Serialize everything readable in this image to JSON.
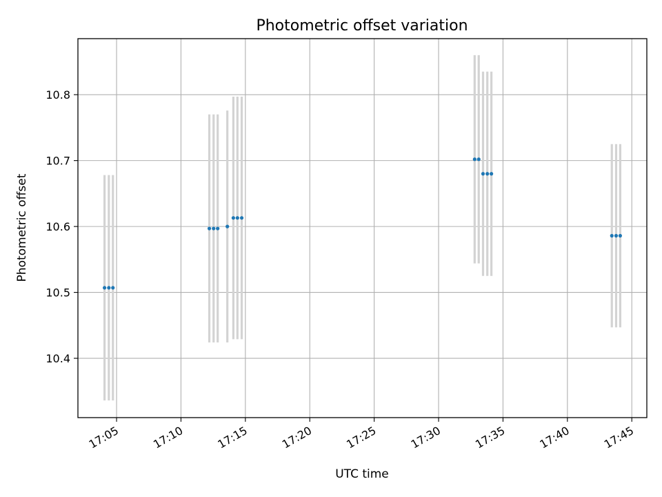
{
  "chart_data": {
    "type": "scatter",
    "title": "Photometric offset variation",
    "xlabel": "UTC time",
    "ylabel": "Photometric offset",
    "x_ticks": [
      "17:05",
      "17:10",
      "17:15",
      "17:20",
      "17:25",
      "17:30",
      "17:35",
      "17:40",
      "17:45"
    ],
    "y_ticks": [
      "10.4",
      "10.5",
      "10.6",
      "10.7",
      "10.8"
    ],
    "xlim": [
      "17:02:00",
      "17:46:10"
    ],
    "ylim": [
      10.31,
      10.885
    ],
    "grid": true,
    "marker_color": "#1f77b4",
    "errorbar_color": "#d3d3d3",
    "points": [
      {
        "time": "17:04:04",
        "y": 10.507,
        "err": 0.171
      },
      {
        "time": "17:04:24",
        "y": 10.507,
        "err": 0.171
      },
      {
        "time": "17:04:43",
        "y": 10.507,
        "err": 0.171
      },
      {
        "time": "17:12:12",
        "y": 10.597,
        "err": 0.173
      },
      {
        "time": "17:12:32",
        "y": 10.597,
        "err": 0.173
      },
      {
        "time": "17:12:51",
        "y": 10.597,
        "err": 0.173
      },
      {
        "time": "17:13:36",
        "y": 10.6,
        "err": 0.176
      },
      {
        "time": "17:14:04",
        "y": 10.613,
        "err": 0.184
      },
      {
        "time": "17:14:23",
        "y": 10.613,
        "err": 0.184
      },
      {
        "time": "17:14:43",
        "y": 10.613,
        "err": 0.184
      },
      {
        "time": "17:32:48",
        "y": 10.702,
        "err": 0.158
      },
      {
        "time": "17:33:07",
        "y": 10.702,
        "err": 0.158
      },
      {
        "time": "17:33:27",
        "y": 10.68,
        "err": 0.155
      },
      {
        "time": "17:33:47",
        "y": 10.68,
        "err": 0.155
      },
      {
        "time": "17:34:06",
        "y": 10.68,
        "err": 0.155
      },
      {
        "time": "17:43:27",
        "y": 10.586,
        "err": 0.139
      },
      {
        "time": "17:43:47",
        "y": 10.586,
        "err": 0.139
      },
      {
        "time": "17:44:06",
        "y": 10.586,
        "err": 0.139
      }
    ]
  }
}
